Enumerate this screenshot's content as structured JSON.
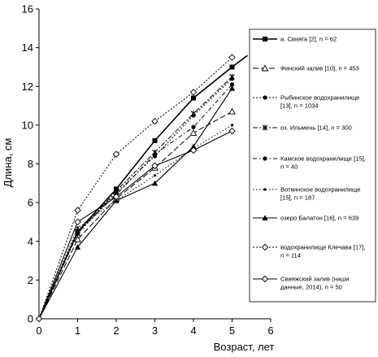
{
  "chart_data": {
    "type": "line",
    "xlabel": "Возраст, лет",
    "ylabel": "Длина, см",
    "xlim": [
      0,
      6
    ],
    "ylim": [
      0,
      16
    ],
    "x_ticks": [
      0,
      1,
      2,
      3,
      4,
      5,
      6
    ],
    "y_ticks": [
      0,
      2,
      4,
      6,
      8,
      10,
      12,
      14,
      16
    ],
    "grid": false,
    "legend_position": "right",
    "series": [
      {
        "name": "а. Свияга [2], n = 62",
        "label_lines": [
          "а. Свияга [2], n = 62"
        ],
        "x": [
          0,
          1,
          2,
          3,
          4,
          5,
          5.4
        ],
        "values": [
          0,
          4.5,
          6.7,
          9.2,
          11.4,
          13.0,
          13.6
        ],
        "marker": "square-filled",
        "dash": "",
        "stroke_width": 1.6
      },
      {
        "name": "Финский залив [10], n = 453",
        "label_lines": [
          "Финский залив [10], n = 453"
        ],
        "x": [
          0,
          1,
          2,
          3,
          4,
          5
        ],
        "values": [
          0,
          4.1,
          6.2,
          7.8,
          9.6,
          10.7
        ],
        "marker": "triangle-open",
        "dash": "7,3",
        "stroke_width": 1
      },
      {
        "name": "Рыбинское водохранилище [13], n = 1034",
        "label_lines": [
          "Рыбинское водохранилище",
          "[13], n = 1034"
        ],
        "x": [
          0,
          1,
          2,
          3,
          4,
          5
        ],
        "values": [
          0,
          4.4,
          6.5,
          8.4,
          10.5,
          12.4
        ],
        "marker": "circle-filled",
        "dash": "2,2",
        "stroke_width": 1
      },
      {
        "name": "оз. Ильмень [14], n = 300",
        "label_lines": [
          "оз. Ильмень [14], n = 300"
        ],
        "x": [
          0,
          1,
          2,
          3,
          4,
          5
        ],
        "values": [
          0,
          4.4,
          6.6,
          8.6,
          10.6,
          12.5
        ],
        "marker": "x-star",
        "dash": "6,2,2,2",
        "stroke_width": 1
      },
      {
        "name": "Камское водохранилище [15], n = 40",
        "label_lines": [
          "Камское водохранилище [15],",
          "n = 40"
        ],
        "x": [
          0,
          1,
          2,
          3,
          4,
          5
        ],
        "values": [
          0,
          4.5,
          6.4,
          8.5,
          9.9,
          12.1
        ],
        "marker": "circle-filled",
        "dash": "5,3,1.5,3",
        "stroke_width": 1
      },
      {
        "name": "Воткинское водохранилище [15], n = 187",
        "label_lines": [
          "Воткинское водохранилище",
          "[15], n = 187"
        ],
        "x": [
          0,
          1,
          2,
          3,
          4,
          5
        ],
        "values": [
          0,
          4.7,
          6.1,
          7.4,
          8.8,
          10.0
        ],
        "marker": "dot-small",
        "dash": "1.5,2.5",
        "stroke_width": 1
      },
      {
        "name": "озеро Балатон [16], n = 639",
        "label_lines": [
          "озеро Балатон [16], n = 639"
        ],
        "x": [
          0,
          1,
          2,
          3,
          4,
          5
        ],
        "values": [
          0,
          3.7,
          6.1,
          7.0,
          8.9,
          11.9
        ],
        "marker": "triangle-filled",
        "dash": "",
        "stroke_width": 1.1
      },
      {
        "name": "водохранилище Клечава [17], n = 114",
        "label_lines": [
          "водохранилище Клечава [17],",
          "n = 114"
        ],
        "x": [
          0,
          1,
          2,
          3,
          4,
          5
        ],
        "values": [
          0,
          5.6,
          8.5,
          10.2,
          11.7,
          13.5
        ],
        "marker": "diamond-open",
        "dash": "2,2",
        "stroke_width": 1
      },
      {
        "name": "Свияжский залив (наши данные, 2014), n = 50",
        "label_lines": [
          "Свияжский залив (наши",
          "данные, 2014), n = 50"
        ],
        "x": [
          0,
          1,
          2,
          3,
          4,
          5
        ],
        "values": [
          0,
          5.0,
          6.3,
          7.9,
          8.7,
          9.7
        ],
        "marker": "diamond-open",
        "dash": "",
        "stroke_width": 1.1
      }
    ]
  }
}
